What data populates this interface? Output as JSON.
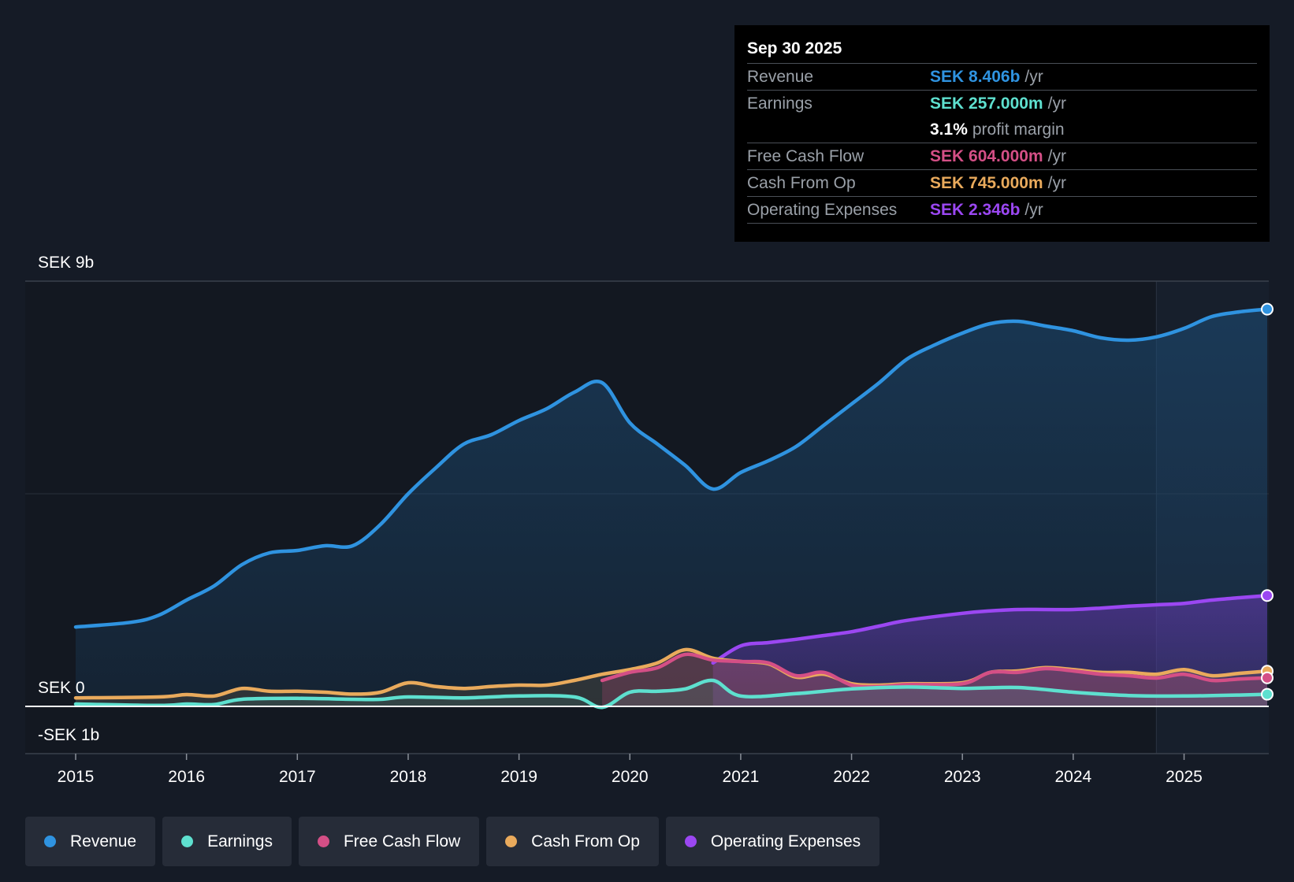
{
  "tooltip": {
    "date": "Sep 30 2025",
    "rows": {
      "revenue": {
        "label": "Revenue",
        "value": "SEK 8.406b",
        "unit": "/yr",
        "color": "#2f93e0"
      },
      "earnings": {
        "label": "Earnings",
        "value": "SEK 257.000m",
        "unit": "/yr",
        "color": "#5ee0cf"
      },
      "margin": {
        "value": "3.1%",
        "text": "profit margin"
      },
      "fcf": {
        "label": "Free Cash Flow",
        "value": "SEK 604.000m",
        "unit": "/yr",
        "color": "#d44f86"
      },
      "cfo": {
        "label": "Cash From Op",
        "value": "SEK 745.000m",
        "unit": "/yr",
        "color": "#e9aa5c"
      },
      "opex": {
        "label": "Operating Expenses",
        "value": "SEK 2.346b",
        "unit": "/yr",
        "color": "#9b47f2"
      }
    }
  },
  "legend": [
    {
      "label": "Revenue",
      "color": "#2f93e0"
    },
    {
      "label": "Earnings",
      "color": "#5ee0cf"
    },
    {
      "label": "Free Cash Flow",
      "color": "#d44f86"
    },
    {
      "label": "Cash From Op",
      "color": "#e9aa5c"
    },
    {
      "label": "Operating Expenses",
      "color": "#9b47f2"
    }
  ],
  "chart_data": {
    "type": "area",
    "title": "",
    "xlabel": "",
    "ylabel": "",
    "y_axis_labels": [
      "SEK 9b",
      "SEK 0",
      "-SEK 1b"
    ],
    "ylim": [
      -1.0,
      9.0
    ],
    "xlim": [
      2015.0,
      2025.75
    ],
    "x_ticks": [
      "2015",
      "2016",
      "2017",
      "2018",
      "2019",
      "2020",
      "2021",
      "2022",
      "2023",
      "2024",
      "2025"
    ],
    "forecast_shade_start": 2024.75,
    "units": "SEK billions",
    "series": [
      {
        "name": "Revenue",
        "color": "#2f93e0",
        "x": [
          2015.0,
          2015.5,
          2015.75,
          2016.0,
          2016.25,
          2016.5,
          2016.75,
          2017.0,
          2017.25,
          2017.5,
          2017.75,
          2018.0,
          2018.25,
          2018.5,
          2018.75,
          2019.0,
          2019.25,
          2019.5,
          2019.75,
          2020.0,
          2020.25,
          2020.5,
          2020.75,
          2021.0,
          2021.25,
          2021.5,
          2021.75,
          2022.0,
          2022.25,
          2022.5,
          2022.75,
          2023.0,
          2023.25,
          2023.5,
          2023.75,
          2024.0,
          2024.25,
          2024.5,
          2024.75,
          2025.0,
          2025.25,
          2025.5,
          2025.75
        ],
        "values": [
          1.68,
          1.78,
          1.93,
          2.25,
          2.55,
          3.0,
          3.25,
          3.3,
          3.4,
          3.4,
          3.85,
          4.5,
          5.05,
          5.55,
          5.75,
          6.05,
          6.3,
          6.65,
          6.85,
          6.0,
          5.55,
          5.1,
          4.6,
          4.95,
          5.2,
          5.5,
          5.95,
          6.4,
          6.85,
          7.35,
          7.65,
          7.9,
          8.1,
          8.15,
          8.05,
          7.95,
          7.8,
          7.75,
          7.82,
          8.0,
          8.25,
          8.35,
          8.406
        ]
      },
      {
        "name": "Earnings",
        "color": "#5ee0cf",
        "x": [
          2015.0,
          2015.75,
          2016.0,
          2016.25,
          2016.5,
          2017.0,
          2017.5,
          2017.75,
          2018.0,
          2018.5,
          2019.0,
          2019.5,
          2019.75,
          2020.0,
          2020.25,
          2020.5,
          2020.75,
          2021.0,
          2021.5,
          2022.0,
          2022.5,
          2023.0,
          2023.5,
          2024.0,
          2024.5,
          2025.0,
          2025.5,
          2025.75
        ],
        "values": [
          0.05,
          0.02,
          0.05,
          0.04,
          0.15,
          0.17,
          0.15,
          0.15,
          0.2,
          0.18,
          0.22,
          0.2,
          -0.02,
          0.3,
          0.32,
          0.37,
          0.55,
          0.22,
          0.27,
          0.37,
          0.41,
          0.38,
          0.4,
          0.3,
          0.23,
          0.22,
          0.24,
          0.257
        ]
      },
      {
        "name": "Free Cash Flow",
        "color": "#d44f86",
        "x": [
          2019.75,
          2020.0,
          2020.25,
          2020.5,
          2020.75,
          2021.0,
          2021.25,
          2021.5,
          2021.75,
          2022.0,
          2022.25,
          2022.5,
          2023.0,
          2023.25,
          2023.5,
          2023.75,
          2024.0,
          2024.25,
          2024.5,
          2024.75,
          2025.0,
          2025.25,
          2025.5,
          2025.75
        ],
        "values": [
          0.55,
          0.72,
          0.82,
          1.1,
          0.98,
          0.95,
          0.92,
          0.65,
          0.72,
          0.45,
          0.42,
          0.46,
          0.48,
          0.72,
          0.72,
          0.8,
          0.75,
          0.68,
          0.65,
          0.6,
          0.68,
          0.55,
          0.58,
          0.604
        ]
      },
      {
        "name": "Cash From Op",
        "color": "#e9aa5c",
        "x": [
          2015.0,
          2015.75,
          2016.0,
          2016.25,
          2016.5,
          2016.75,
          2017.0,
          2017.25,
          2017.5,
          2017.75,
          2018.0,
          2018.25,
          2018.5,
          2018.75,
          2019.0,
          2019.25,
          2019.5,
          2019.75,
          2020.0,
          2020.25,
          2020.5,
          2020.75,
          2021.0,
          2021.25,
          2021.5,
          2021.75,
          2022.0,
          2022.25,
          2022.5,
          2023.0,
          2023.25,
          2023.5,
          2023.75,
          2024.0,
          2024.25,
          2024.5,
          2024.75,
          2025.0,
          2025.25,
          2025.5,
          2025.75
        ],
        "values": [
          0.18,
          0.2,
          0.25,
          0.22,
          0.38,
          0.32,
          0.32,
          0.3,
          0.26,
          0.3,
          0.5,
          0.42,
          0.38,
          0.42,
          0.45,
          0.45,
          0.55,
          0.68,
          0.78,
          0.92,
          1.2,
          1.02,
          0.95,
          0.9,
          0.62,
          0.68,
          0.48,
          0.45,
          0.48,
          0.5,
          0.72,
          0.75,
          0.82,
          0.78,
          0.72,
          0.72,
          0.68,
          0.78,
          0.65,
          0.7,
          0.745
        ]
      },
      {
        "name": "Operating Expenses",
        "color": "#9b47f2",
        "x": [
          2020.75,
          2021.0,
          2021.25,
          2021.5,
          2021.75,
          2022.0,
          2022.25,
          2022.5,
          2023.0,
          2023.25,
          2023.5,
          2023.75,
          2024.0,
          2024.25,
          2024.5,
          2024.75,
          2025.0,
          2025.25,
          2025.5,
          2025.75
        ],
        "values": [
          0.92,
          1.28,
          1.35,
          1.42,
          1.5,
          1.58,
          1.7,
          1.82,
          1.97,
          2.02,
          2.05,
          2.05,
          2.05,
          2.08,
          2.12,
          2.15,
          2.18,
          2.25,
          2.3,
          2.346
        ]
      }
    ]
  }
}
